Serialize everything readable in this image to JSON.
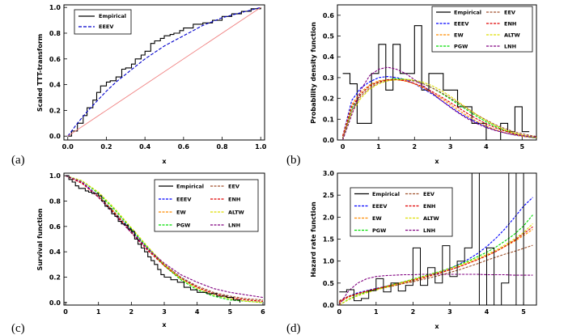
{
  "chart_data": [
    {
      "panel": "(a)",
      "type": "line",
      "xlabel": "x",
      "ylabel": "Scaled TTT-transform",
      "xlim": [
        0,
        1
      ],
      "ylim": [
        0,
        1.02
      ],
      "xticks": [
        "0.0",
        "0.2",
        "0.4",
        "0.6",
        "0.8",
        "1.0"
      ],
      "yticks": [
        "0.0",
        "0.2",
        "0.4",
        "0.6",
        "0.8",
        "1.0"
      ],
      "legend": [
        "Empirical",
        "EEEV"
      ],
      "series": [
        {
          "name": "Empirical",
          "color": "#000000",
          "dash": "solid",
          "step": true,
          "x": [
            0.0,
            0.02,
            0.05,
            0.08,
            0.1,
            0.13,
            0.15,
            0.17,
            0.2,
            0.22,
            0.25,
            0.28,
            0.3,
            0.33,
            0.35,
            0.38,
            0.4,
            0.43,
            0.45,
            0.48,
            0.5,
            0.53,
            0.55,
            0.58,
            0.6,
            0.65,
            0.7,
            0.75,
            0.8,
            0.85,
            0.9,
            0.95,
            1.0
          ],
          "y": [
            0.0,
            0.04,
            0.1,
            0.16,
            0.22,
            0.28,
            0.34,
            0.39,
            0.42,
            0.43,
            0.46,
            0.52,
            0.53,
            0.56,
            0.6,
            0.63,
            0.66,
            0.72,
            0.74,
            0.76,
            0.78,
            0.79,
            0.8,
            0.82,
            0.84,
            0.87,
            0.88,
            0.9,
            0.93,
            0.95,
            0.97,
            0.99,
            1.0
          ]
        },
        {
          "name": "EEEV",
          "color": "#0000cc",
          "dash": "dashed",
          "step": false,
          "x": [
            0.0,
            0.05,
            0.1,
            0.15,
            0.2,
            0.25,
            0.3,
            0.35,
            0.4,
            0.45,
            0.5,
            0.55,
            0.6,
            0.65,
            0.7,
            0.75,
            0.8,
            0.85,
            0.9,
            0.95,
            1.0
          ],
          "y": [
            0.0,
            0.1,
            0.19,
            0.27,
            0.35,
            0.42,
            0.48,
            0.54,
            0.6,
            0.65,
            0.7,
            0.74,
            0.78,
            0.82,
            0.86,
            0.89,
            0.92,
            0.94,
            0.96,
            0.98,
            1.0
          ]
        },
        {
          "name": "diagonal",
          "color": "#f08080",
          "dash": "solid",
          "step": false,
          "x": [
            0,
            1
          ],
          "y": [
            0,
            1
          ]
        }
      ]
    },
    {
      "panel": "(b)",
      "type": "line",
      "xlabel": "x",
      "ylabel": "Probability density function",
      "xlim": [
        -0.15,
        5.4
      ],
      "ylim": [
        0,
        0.65
      ],
      "xticks": [
        "0",
        "1",
        "2",
        "3",
        "4",
        "5"
      ],
      "yticks": [
        "0.0",
        "0.1",
        "0.2",
        "0.3",
        "0.4",
        "0.5",
        "0.6"
      ],
      "legend": [
        "Empirical",
        "EEV",
        "EEEV",
        "ENH",
        "EW",
        "ALTW",
        "PGW",
        "LNH"
      ],
      "histogram": {
        "edges": [
          0.0,
          0.2,
          0.4,
          0.6,
          0.8,
          1.0,
          1.2,
          1.4,
          1.6,
          1.8,
          2.0,
          2.2,
          2.4,
          2.6,
          2.8,
          3.0,
          3.2,
          3.4,
          3.6,
          3.8,
          4.0,
          4.2,
          4.4,
          4.6,
          4.8,
          5.0,
          5.2
        ],
        "heights": [
          0.32,
          0.27,
          0.08,
          0.08,
          0.32,
          0.46,
          0.24,
          0.46,
          0.32,
          0.32,
          0.55,
          0.24,
          0.32,
          0.32,
          0.24,
          0.24,
          0.16,
          0.16,
          0.08,
          0.08,
          0.0,
          0.0,
          0.08,
          0.04,
          0.16,
          0.04
        ]
      },
      "x": [
        0.0,
        0.25,
        0.5,
        0.75,
        1.0,
        1.25,
        1.5,
        1.75,
        2.0,
        2.25,
        2.5,
        2.75,
        3.0,
        3.25,
        3.5,
        3.75,
        4.0,
        4.25,
        4.5,
        4.75,
        5.0,
        5.25,
        5.4
      ],
      "series": [
        {
          "name": "EEEV",
          "color": "#0000ff",
          "dash": "dashed",
          "y": [
            0.02,
            0.19,
            0.25,
            0.28,
            0.3,
            0.305,
            0.3,
            0.29,
            0.27,
            0.245,
            0.22,
            0.19,
            0.16,
            0.13,
            0.105,
            0.083,
            0.064,
            0.048,
            0.035,
            0.025,
            0.018,
            0.012,
            0.01
          ]
        },
        {
          "name": "EW",
          "color": "#ff8c00",
          "dash": "dashed",
          "y": [
            0.02,
            0.17,
            0.23,
            0.265,
            0.285,
            0.29,
            0.29,
            0.283,
            0.27,
            0.25,
            0.225,
            0.2,
            0.17,
            0.14,
            0.113,
            0.088,
            0.067,
            0.05,
            0.036,
            0.026,
            0.018,
            0.012,
            0.01
          ]
        },
        {
          "name": "PGW",
          "color": "#00dd00",
          "dash": "dashed",
          "y": [
            0.0,
            0.15,
            0.22,
            0.26,
            0.28,
            0.29,
            0.295,
            0.292,
            0.285,
            0.27,
            0.25,
            0.225,
            0.197,
            0.168,
            0.14,
            0.112,
            0.087,
            0.065,
            0.047,
            0.033,
            0.022,
            0.014,
            0.011
          ]
        },
        {
          "name": "EEV",
          "color": "#a0522d",
          "dash": "dashed",
          "y": [
            0.01,
            0.14,
            0.21,
            0.25,
            0.275,
            0.285,
            0.29,
            0.29,
            0.283,
            0.27,
            0.25,
            0.228,
            0.202,
            0.175,
            0.147,
            0.12,
            0.096,
            0.074,
            0.056,
            0.041,
            0.03,
            0.021,
            0.017
          ]
        },
        {
          "name": "ENH",
          "color": "#e00000",
          "dash": "dashed",
          "y": [
            0.02,
            0.16,
            0.22,
            0.26,
            0.28,
            0.29,
            0.29,
            0.285,
            0.272,
            0.255,
            0.232,
            0.207,
            0.18,
            0.152,
            0.125,
            0.1,
            0.078,
            0.059,
            0.044,
            0.032,
            0.023,
            0.016,
            0.013
          ]
        },
        {
          "name": "ALTW",
          "color": "#dddd00",
          "dash": "dashed",
          "y": [
            0.0,
            0.13,
            0.2,
            0.245,
            0.27,
            0.285,
            0.29,
            0.292,
            0.288,
            0.277,
            0.26,
            0.238,
            0.21,
            0.18,
            0.15,
            0.12,
            0.093,
            0.07,
            0.05,
            0.035,
            0.024,
            0.016,
            0.012
          ]
        },
        {
          "name": "LNH",
          "color": "#800080",
          "dash": "dashed",
          "y": [
            0.0,
            0.12,
            0.24,
            0.31,
            0.34,
            0.35,
            0.34,
            0.32,
            0.29,
            0.26,
            0.225,
            0.19,
            0.157,
            0.127,
            0.1,
            0.078,
            0.06,
            0.046,
            0.035,
            0.027,
            0.021,
            0.016,
            0.014
          ]
        }
      ]
    },
    {
      "panel": "(c)",
      "type": "line",
      "xlabel": "x",
      "ylabel": "Survival function",
      "xlim": [
        -0.05,
        6.05
      ],
      "ylim": [
        -0.02,
        1.02
      ],
      "xticks": [
        "0",
        "1",
        "2",
        "3",
        "4",
        "5",
        "6"
      ],
      "yticks": [
        "0.0",
        "0.2",
        "0.4",
        "0.6",
        "0.8",
        "1.0"
      ],
      "legend": [
        "Empirical",
        "EEV",
        "EEEV",
        "ENH",
        "EW",
        "ALTW",
        "PGW",
        "LNH"
      ],
      "x": [
        0.0,
        0.5,
        1.0,
        1.5,
        2.0,
        2.5,
        3.0,
        3.5,
        4.0,
        4.5,
        5.0,
        5.5,
        6.0
      ],
      "empirical": {
        "x": [
          0.0,
          0.1,
          0.2,
          0.3,
          0.4,
          0.5,
          0.6,
          0.7,
          0.8,
          0.9,
          1.0,
          1.1,
          1.2,
          1.3,
          1.4,
          1.5,
          1.6,
          1.7,
          1.8,
          1.9,
          2.0,
          2.1,
          2.2,
          2.3,
          2.4,
          2.5,
          2.6,
          2.7,
          2.8,
          2.9,
          3.0,
          3.2,
          3.4,
          3.6,
          3.8,
          4.0,
          4.3,
          4.6,
          4.9,
          5.1,
          5.3
        ],
        "y": [
          1.0,
          0.97,
          0.95,
          0.92,
          0.9,
          0.9,
          0.88,
          0.87,
          0.86,
          0.86,
          0.84,
          0.8,
          0.76,
          0.74,
          0.7,
          0.68,
          0.64,
          0.62,
          0.61,
          0.58,
          0.56,
          0.5,
          0.46,
          0.43,
          0.4,
          0.36,
          0.33,
          0.3,
          0.26,
          0.22,
          0.2,
          0.18,
          0.16,
          0.12,
          0.1,
          0.08,
          0.07,
          0.05,
          0.04,
          0.02,
          0.0
        ]
      },
      "series": [
        {
          "name": "EEEV",
          "color": "#0000ff",
          "dash": "dashed",
          "y": [
            1.0,
            0.95,
            0.84,
            0.71,
            0.57,
            0.43,
            0.3,
            0.2,
            0.12,
            0.07,
            0.04,
            0.02,
            0.01
          ]
        },
        {
          "name": "EW",
          "color": "#ff8c00",
          "dash": "dashed",
          "y": [
            1.0,
            0.94,
            0.84,
            0.71,
            0.56,
            0.42,
            0.29,
            0.19,
            0.12,
            0.07,
            0.04,
            0.02,
            0.01
          ]
        },
        {
          "name": "PGW",
          "color": "#00dd00",
          "dash": "dashed",
          "y": [
            1.0,
            0.96,
            0.86,
            0.73,
            0.58,
            0.43,
            0.29,
            0.18,
            0.1,
            0.05,
            0.02,
            0.01,
            0.0
          ]
        },
        {
          "name": "EEV",
          "color": "#a0522d",
          "dash": "dashed",
          "y": [
            1.0,
            0.94,
            0.83,
            0.7,
            0.56,
            0.42,
            0.3,
            0.2,
            0.13,
            0.08,
            0.05,
            0.03,
            0.02
          ]
        },
        {
          "name": "ENH",
          "color": "#e00000",
          "dash": "dashed",
          "y": [
            1.0,
            0.94,
            0.83,
            0.7,
            0.55,
            0.41,
            0.29,
            0.19,
            0.12,
            0.07,
            0.04,
            0.02,
            0.01
          ]
        },
        {
          "name": "ALTW",
          "color": "#dddd00",
          "dash": "dashed",
          "y": [
            1.0,
            0.96,
            0.87,
            0.74,
            0.59,
            0.44,
            0.3,
            0.19,
            0.11,
            0.06,
            0.03,
            0.01,
            0.0
          ]
        },
        {
          "name": "LNH",
          "color": "#800080",
          "dash": "dashed",
          "y": [
            1.0,
            0.95,
            0.83,
            0.69,
            0.55,
            0.42,
            0.31,
            0.22,
            0.16,
            0.11,
            0.08,
            0.06,
            0.04
          ]
        }
      ]
    },
    {
      "panel": "(d)",
      "type": "line",
      "xlabel": "x",
      "ylabel": "Hazard rate function",
      "xlim": [
        -0.05,
        5.35
      ],
      "ylim": [
        0,
        3.0
      ],
      "xticks": [
        "0",
        "1",
        "2",
        "3",
        "4",
        "5"
      ],
      "yticks": [
        "0.0",
        "0.5",
        "1.0",
        "1.5",
        "2.0",
        "2.5",
        "3.0"
      ],
      "legend": [
        "Empirical",
        "EEV",
        "EEEV",
        "ENH",
        "EW",
        "ALTW",
        "PGW",
        "LNH"
      ],
      "x": [
        0.0,
        0.25,
        0.5,
        0.75,
        1.0,
        1.25,
        1.5,
        1.75,
        2.0,
        2.25,
        2.5,
        2.75,
        3.0,
        3.25,
        3.5,
        3.75,
        4.0,
        4.25,
        4.5,
        4.75,
        5.0,
        5.25
      ],
      "empirical": {
        "x": [
          0.0,
          0.2,
          0.2,
          0.4,
          0.4,
          0.6,
          0.6,
          0.8,
          0.8,
          1.0,
          1.0,
          1.2,
          1.2,
          1.4,
          1.4,
          1.6,
          1.6,
          1.8,
          1.8,
          2.0,
          2.0,
          2.2,
          2.2,
          2.4,
          2.4,
          2.6,
          2.6,
          2.8,
          2.8,
          3.0,
          3.0,
          3.2,
          3.2,
          3.4,
          3.4,
          3.6,
          3.6,
          3.8,
          3.8,
          4.0,
          4.0,
          4.2,
          4.2,
          4.4,
          4.4,
          4.6,
          4.6,
          4.8,
          4.8,
          5.0,
          5.0
        ],
        "y": [
          0.3,
          0.3,
          0.35,
          0.35,
          0.1,
          0.1,
          0.15,
          0.15,
          0.33,
          0.33,
          0.6,
          0.6,
          0.3,
          0.3,
          0.5,
          0.5,
          0.32,
          0.32,
          0.45,
          0.45,
          1.3,
          1.3,
          0.45,
          0.45,
          0.85,
          0.85,
          0.5,
          0.5,
          1.35,
          1.35,
          0.65,
          0.65,
          1.0,
          1.0,
          1.3,
          1.3,
          3.0,
          3.0,
          0.0,
          0.0,
          1.3,
          1.3,
          0.0,
          0.0,
          0.5,
          0.5,
          3.0,
          3.0,
          0.0,
          0.0,
          3.0
        ]
      },
      "series": [
        {
          "name": "EEEV",
          "color": "#0000ff",
          "dash": "dashed",
          "y": [
            0.08,
            0.2,
            0.28,
            0.33,
            0.38,
            0.42,
            0.47,
            0.51,
            0.56,
            0.62,
            0.68,
            0.75,
            0.83,
            0.93,
            1.04,
            1.17,
            1.33,
            1.52,
            1.74,
            1.99,
            2.25,
            2.45
          ]
        },
        {
          "name": "EW",
          "color": "#ff8c00",
          "dash": "dashed",
          "y": [
            0.05,
            0.18,
            0.25,
            0.31,
            0.36,
            0.4,
            0.45,
            0.5,
            0.55,
            0.61,
            0.67,
            0.73,
            0.8,
            0.87,
            0.95,
            1.03,
            1.12,
            1.22,
            1.33,
            1.45,
            1.58,
            1.72
          ]
        },
        {
          "name": "PGW",
          "color": "#00dd00",
          "dash": "dashed",
          "y": [
            0.0,
            0.13,
            0.22,
            0.3,
            0.36,
            0.42,
            0.48,
            0.53,
            0.59,
            0.65,
            0.71,
            0.77,
            0.84,
            0.92,
            1.0,
            1.1,
            1.2,
            1.32,
            1.46,
            1.61,
            1.8,
            2.05
          ]
        },
        {
          "name": "EEV",
          "color": "#a0522d",
          "dash": "dashed",
          "y": [
            0.1,
            0.2,
            0.26,
            0.31,
            0.36,
            0.4,
            0.44,
            0.49,
            0.53,
            0.58,
            0.63,
            0.68,
            0.74,
            0.8,
            0.87,
            0.94,
            1.02,
            1.09,
            1.16,
            1.22,
            1.29,
            1.36
          ]
        },
        {
          "name": "ENH",
          "color": "#e00000",
          "dash": "dashed",
          "y": [
            0.08,
            0.19,
            0.26,
            0.32,
            0.37,
            0.42,
            0.47,
            0.52,
            0.57,
            0.62,
            0.68,
            0.74,
            0.8,
            0.87,
            0.95,
            1.03,
            1.12,
            1.22,
            1.34,
            1.47,
            1.62,
            1.78
          ]
        },
        {
          "name": "ALTW",
          "color": "#dddd00",
          "dash": "dashed",
          "y": [
            0.0,
            0.12,
            0.21,
            0.28,
            0.34,
            0.4,
            0.46,
            0.52,
            0.58,
            0.64,
            0.7,
            0.76,
            0.83,
            0.9,
            0.98,
            1.06,
            1.15,
            1.25,
            1.37,
            1.5,
            1.65,
            1.85
          ]
        },
        {
          "name": "LNH",
          "color": "#800080",
          "dash": "dashed",
          "y": [
            0.0,
            0.32,
            0.5,
            0.6,
            0.65,
            0.67,
            0.68,
            0.69,
            0.69,
            0.7,
            0.7,
            0.7,
            0.7,
            0.7,
            0.7,
            0.7,
            0.69,
            0.69,
            0.69,
            0.68,
            0.68,
            0.68
          ]
        }
      ]
    }
  ]
}
